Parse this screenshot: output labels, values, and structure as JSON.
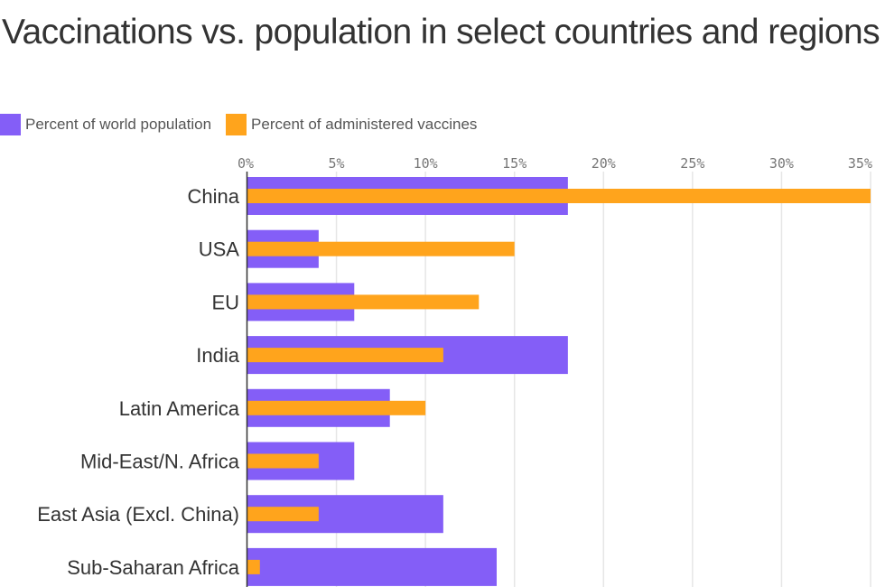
{
  "title": "Vaccinations vs. population in select countries and regions",
  "colors": {
    "population": "#845ef7",
    "vaccines": "#ffa41c",
    "grid": "#e6e6e6",
    "axis": "#333333"
  },
  "chart_data": {
    "type": "bar",
    "orientation": "horizontal",
    "title": "Vaccinations vs. population in select countries and regions",
    "xlabel": "",
    "ylabel": "",
    "xlim": [
      0,
      35
    ],
    "x_ticks": [
      0,
      5,
      10,
      15,
      20,
      25,
      30,
      35
    ],
    "x_tick_labels": [
      "0%",
      "5%",
      "10%",
      "15%",
      "20%",
      "25%",
      "30%",
      "35%"
    ],
    "grid": true,
    "legend_position": "top-left",
    "categories": [
      "China",
      "USA",
      "EU",
      "India",
      "Latin America",
      "Mid-East/N. Africa",
      "East Asia (Excl. China)",
      "Sub-Saharan Africa"
    ],
    "series": [
      {
        "name": "Percent of world population",
        "color": "#845ef7",
        "values": [
          18,
          4,
          6,
          18,
          8,
          6,
          11,
          14
        ]
      },
      {
        "name": "Percent of administered vaccines",
        "color": "#ffa41c",
        "values": [
          35,
          15,
          13,
          11,
          10,
          4,
          4,
          0.7
        ]
      }
    ]
  }
}
